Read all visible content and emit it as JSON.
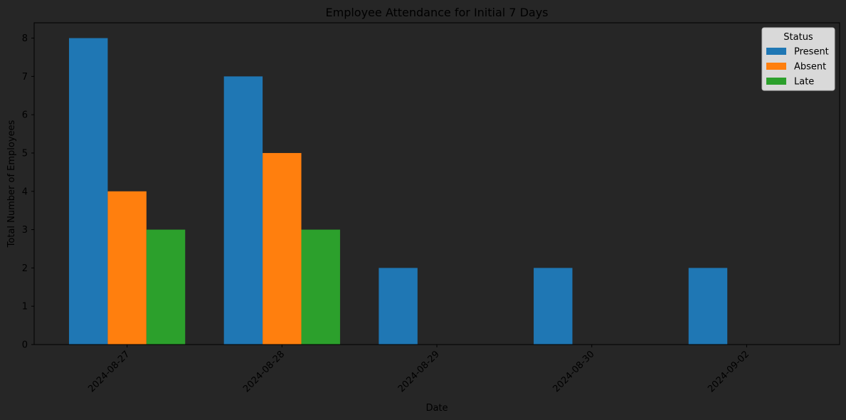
{
  "chart_data": {
    "type": "bar",
    "title": "Employee Attendance for Initial 7 Days",
    "xlabel": "Date",
    "ylabel": "Total Number of Employees",
    "categories": [
      "2024-08-27",
      "2024-08-28",
      "2024-08-29",
      "2024-08-30",
      "2024-09-02"
    ],
    "series": [
      {
        "name": "Present",
        "values": [
          8,
          7,
          2,
          2,
          2
        ],
        "color": "#1f77b4"
      },
      {
        "name": "Absent",
        "values": [
          4,
          5,
          0,
          0,
          0
        ],
        "color": "#ff7f0e"
      },
      {
        "name": "Late",
        "values": [
          3,
          3,
          0,
          0,
          0
        ],
        "color": "#2ca02c"
      }
    ],
    "ylim": [
      0,
      8.4
    ],
    "yticks": [
      0,
      1,
      2,
      3,
      4,
      5,
      6,
      7,
      8
    ],
    "legend": {
      "title": "Status",
      "placement": "top-right"
    },
    "grid": false,
    "colors": {
      "background": "#262626",
      "legend_background": "#d9d9d9"
    }
  }
}
